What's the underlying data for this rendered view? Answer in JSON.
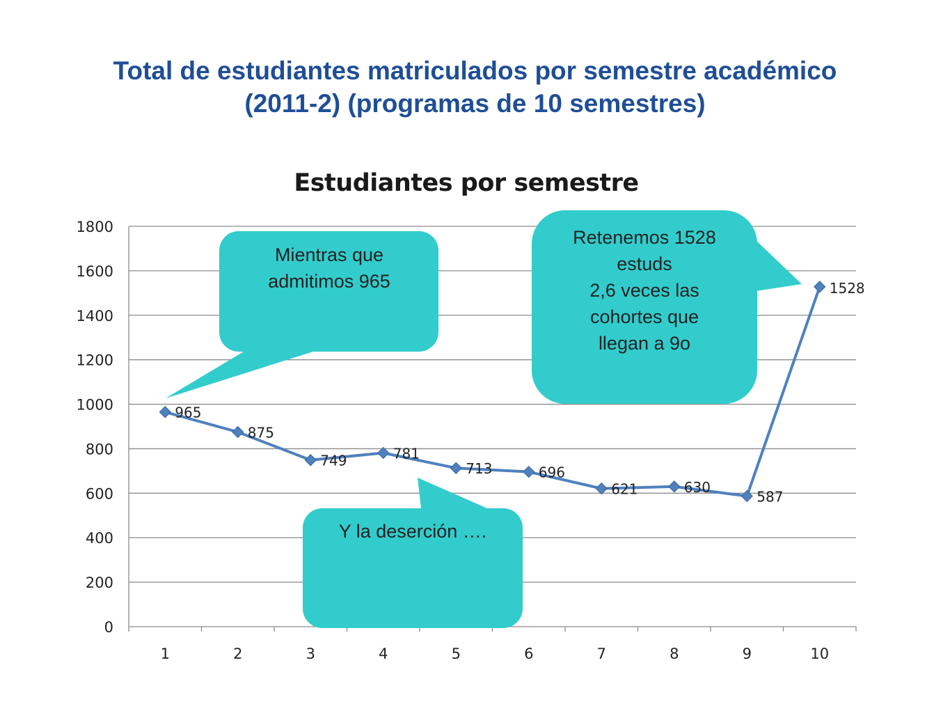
{
  "slide": {
    "title_line1": "Total de estudiantes matriculados por semestre académico",
    "title_line2": "(2011-2) (programas de 10 semestres)"
  },
  "chart_data": {
    "type": "line",
    "title": "Estudiantes por semestre",
    "xlabel": "",
    "ylabel": "",
    "categories": [
      "1",
      "2",
      "3",
      "4",
      "5",
      "6",
      "7",
      "8",
      "9",
      "10"
    ],
    "series": [
      {
        "values": [
          965,
          875,
          749,
          781,
          713,
          696,
          621,
          630,
          587,
          1528
        ],
        "color": "#4f81bd"
      }
    ],
    "yticks": [
      "0",
      "200",
      "400",
      "600",
      "800",
      "1000",
      "1200",
      "1400",
      "1600",
      "1800"
    ],
    "ylim": [
      0,
      1800
    ],
    "grid": true,
    "legend": "none",
    "data_labels": [
      "965",
      "875",
      "749",
      "781",
      "713",
      "696",
      "621",
      "630",
      "587",
      "1528"
    ]
  },
  "callouts": [
    {
      "lines": [
        "Mientras que",
        "admitimos 965"
      ],
      "color": "#33cccc"
    },
    {
      "lines": [
        "Y la deserción …."
      ],
      "color": "#33cccc"
    },
    {
      "lines": [
        "Retenemos 1528",
        "estuds",
        "2,6 veces las",
        "cohortes que",
        "llegan a 9o"
      ],
      "color": "#33cccc"
    }
  ]
}
